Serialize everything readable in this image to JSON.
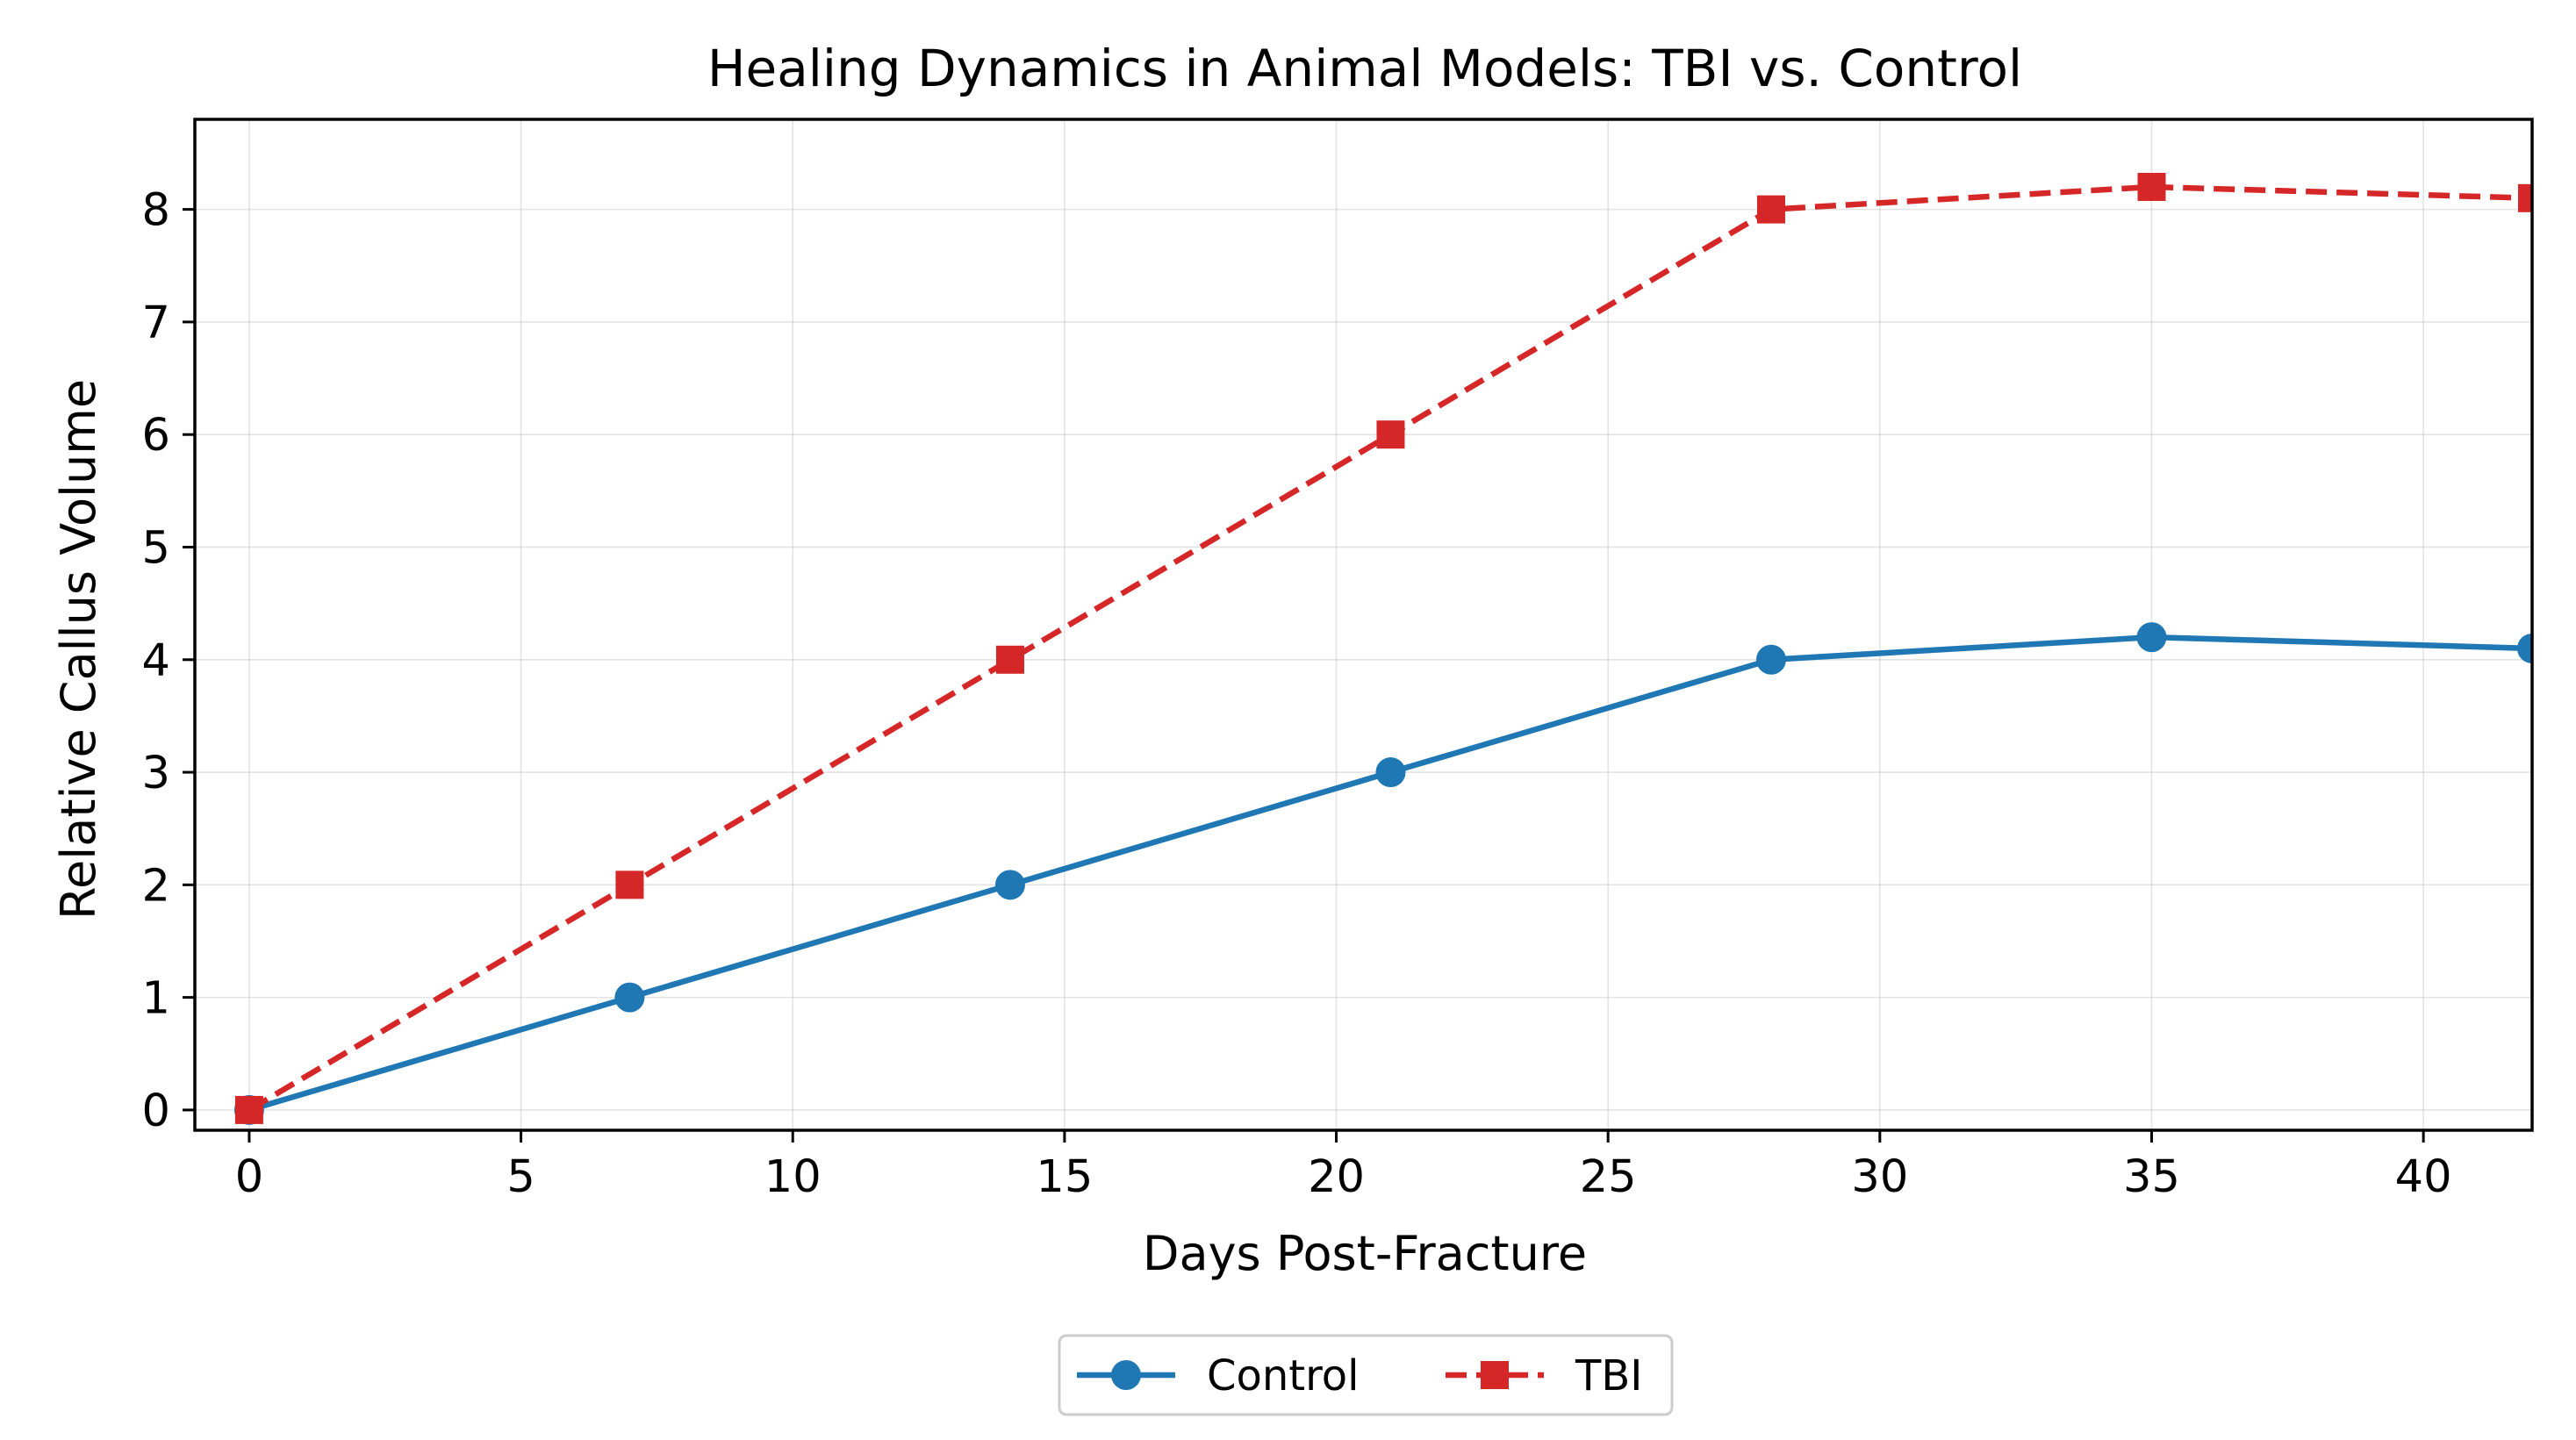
{
  "chart_data": {
    "type": "line",
    "title": "Healing Dynamics in Animal Models: TBI vs. Control",
    "xlabel": "Days Post-Fracture",
    "ylabel": "Relative Callus Volume",
    "xlim": [
      -1,
      42
    ],
    "ylim": [
      -0.18,
      8.8
    ],
    "xticks": [
      0,
      5,
      10,
      15,
      20,
      25,
      30,
      35,
      40
    ],
    "yticks": [
      0,
      1,
      2,
      3,
      4,
      5,
      6,
      7,
      8
    ],
    "grid": true,
    "legend_position": "bottom-center",
    "x": [
      0,
      7,
      14,
      21,
      28,
      35,
      42
    ],
    "series": [
      {
        "name": "Control",
        "values": [
          0,
          1,
          2,
          3,
          4,
          4.2,
          4.1
        ],
        "color": "#1f77b4",
        "line_style": "solid",
        "marker": "circle"
      },
      {
        "name": "TBI",
        "values": [
          0,
          2,
          4,
          6,
          8,
          8.2,
          8.1
        ],
        "color": "#d62728",
        "line_style": "dashed",
        "marker": "square"
      }
    ]
  }
}
